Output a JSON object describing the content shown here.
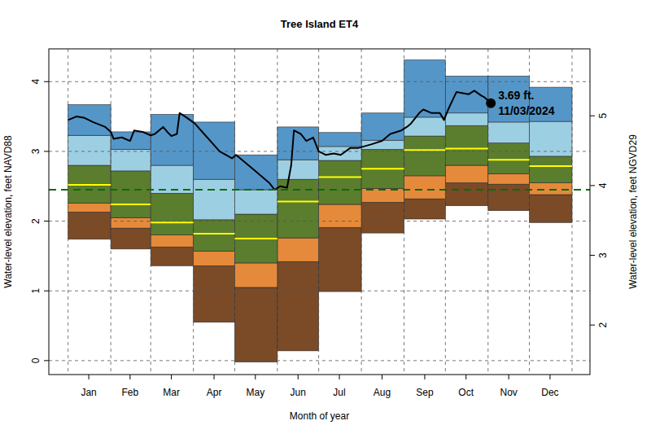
{
  "chart_data": {
    "type": "band",
    "title": "Tree Island ET4",
    "x_label": "Month of year",
    "y_label": "Water-level elevation, feet NAVD88",
    "y2_label": "Water-level elevation, feet NGVD29",
    "bins": [
      1,
      32,
      61,
      92,
      122,
      153,
      183,
      214,
      245,
      275,
      306,
      336,
      367
    ],
    "xlim": [
      -13,
      380
    ],
    "xticks": [
      {
        "value": 16,
        "label": "Jan"
      },
      {
        "value": 46,
        "label": "Feb"
      },
      {
        "value": 76,
        "label": "Mar"
      },
      {
        "value": 107,
        "label": "Apr"
      },
      {
        "value": 137,
        "label": "May"
      },
      {
        "value": 168,
        "label": "Jun"
      },
      {
        "value": 198,
        "label": "Jul"
      },
      {
        "value": 229,
        "label": "Aug"
      },
      {
        "value": 260,
        "label": "Sep"
      },
      {
        "value": 290,
        "label": "Oct"
      },
      {
        "value": 321,
        "label": "Nov"
      },
      {
        "value": 351,
        "label": "Dec"
      }
    ],
    "ylim": [
      -0.2,
      4.47
    ],
    "yticks": [
      0,
      1,
      2,
      3,
      4
    ],
    "y2lim": [
      1.29,
      5.96
    ],
    "y2ticks": [
      2,
      3,
      4,
      5
    ],
    "grid": true,
    "series": [
      {
        "type": "area",
        "values": [
          1.74,
          1.6,
          1.36,
          0.55,
          -0.02,
          0.14,
          0.99,
          1.83,
          2.03,
          2.22,
          2.15,
          1.98
        ]
      },
      {
        "type": "area",
        "color": "#7b4a26",
        "values": [
          2.13,
          1.9,
          1.63,
          1.36,
          1.05,
          1.42,
          1.91,
          2.27,
          2.32,
          2.55,
          2.53,
          2.38
        ]
      },
      {
        "type": "area",
        "color": "#e58a3a",
        "values": [
          2.26,
          2.05,
          1.8,
          1.57,
          1.4,
          1.76,
          2.24,
          2.47,
          2.65,
          2.8,
          2.68,
          2.55
        ]
      },
      {
        "type": "area",
        "color": "#5b7d2e",
        "values": [
          2.8,
          2.72,
          2.4,
          2.02,
          2.1,
          2.6,
          2.87,
          3.03,
          3.22,
          3.37,
          3.12,
          2.93
        ]
      },
      {
        "type": "area",
        "color": "#9dcfe3",
        "values": [
          3.23,
          3.03,
          2.8,
          2.6,
          2.45,
          2.88,
          3.07,
          3.16,
          3.49,
          3.55,
          3.42,
          3.43
        ]
      },
      {
        "type": "area",
        "color": "#5596c8",
        "values": [
          3.67,
          3.28,
          3.53,
          3.42,
          2.95,
          3.35,
          3.27,
          3.55,
          4.31,
          4.08,
          4.08,
          3.92
        ]
      },
      {
        "type": "step",
        "color": "#ffff00",
        "values": [
          2.52,
          2.24,
          1.98,
          1.82,
          1.75,
          2.28,
          2.63,
          2.75,
          3.02,
          3.04,
          2.88,
          2.79
        ]
      },
      {
        "type": "line",
        "color": "#000000",
        "x": [
          1,
          7,
          13,
          19,
          28,
          32,
          34,
          40,
          46,
          49,
          55,
          61,
          64,
          67,
          70,
          73,
          76,
          80,
          82,
          86,
          93,
          102,
          111,
          120,
          123,
          129,
          138,
          147,
          151,
          155,
          160,
          163,
          165,
          170,
          174,
          179,
          183,
          188,
          194,
          199,
          206,
          212,
          221,
          229,
          235,
          243,
          247,
          250,
          256,
          259,
          265,
          271,
          274,
          277,
          283,
          292,
          296,
          301,
          303,
          308
        ],
        "values": [
          3.45,
          3.5,
          3.48,
          3.42,
          3.35,
          3.28,
          3.18,
          3.2,
          3.15,
          3.3,
          3.28,
          3.23,
          3.25,
          3.3,
          3.35,
          3.28,
          3.22,
          3.25,
          3.55,
          3.5,
          3.4,
          3.2,
          3.0,
          2.9,
          2.95,
          2.85,
          2.7,
          2.55,
          2.45,
          2.5,
          2.48,
          2.8,
          3.3,
          3.25,
          3.15,
          3.2,
          3.0,
          2.95,
          2.97,
          2.95,
          3.05,
          3.05,
          3.1,
          3.15,
          3.25,
          3.3,
          3.35,
          3.4,
          3.55,
          3.6,
          3.55,
          3.55,
          3.45,
          3.6,
          3.85,
          3.82,
          3.87,
          3.8,
          3.78,
          3.69
        ]
      },
      {
        "type": "hline",
        "color": "#0e6b0e",
        "line_style": "dashed",
        "values": [
          2.45
        ]
      },
      {
        "type": "scatter",
        "color": "#000000",
        "marker": "circle",
        "data_labels": true,
        "x": [
          308
        ],
        "values": [
          3.69
        ],
        "value_labels": [
          "3.69 ft."
        ]
      }
    ],
    "annotations": [
      "11/03/2024"
    ]
  }
}
